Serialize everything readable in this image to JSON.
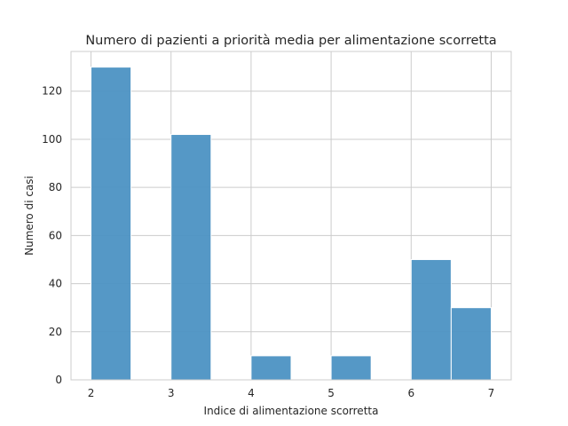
{
  "chart_data": {
    "type": "bar",
    "title": "Numero di pazienti a priorità media per alimentazione scorretta",
    "xlabel": "Indice di alimentazione scorretta",
    "ylabel": "Numero di casi",
    "bins": [
      {
        "start": 2.0,
        "end": 2.5,
        "count": 130
      },
      {
        "start": 2.5,
        "end": 3.0,
        "count": 0
      },
      {
        "start": 3.0,
        "end": 3.5,
        "count": 102
      },
      {
        "start": 3.5,
        "end": 4.0,
        "count": 0
      },
      {
        "start": 4.0,
        "end": 4.5,
        "count": 10
      },
      {
        "start": 4.5,
        "end": 5.0,
        "count": 0
      },
      {
        "start": 5.0,
        "end": 5.5,
        "count": 10
      },
      {
        "start": 5.5,
        "end": 6.0,
        "count": 0
      },
      {
        "start": 6.0,
        "end": 6.5,
        "count": 50
      },
      {
        "start": 6.5,
        "end": 7.0,
        "count": 30
      }
    ],
    "xlim": [
      1.75,
      7.25
    ],
    "ylim": [
      0,
      136.5
    ],
    "x_ticks": [
      "2",
      "3",
      "4",
      "5",
      "6",
      "7"
    ],
    "y_ticks": [
      "0",
      "20",
      "40",
      "60",
      "80",
      "100",
      "120"
    ],
    "grid": true,
    "bar_color": "#4c92c3",
    "grid_color": "#cccccc"
  }
}
